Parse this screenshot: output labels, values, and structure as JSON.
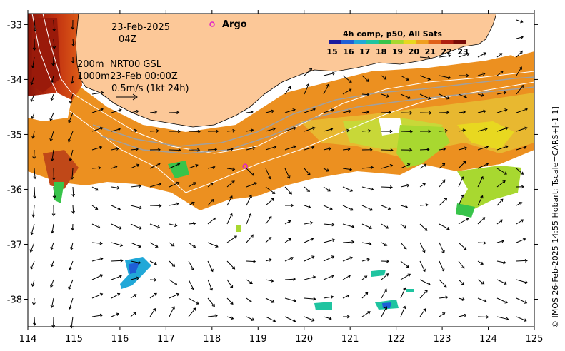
{
  "annotations": {
    "date": "23-Feb-2025",
    "time": "04Z",
    "depth_200": "200m",
    "depth_1000": "1000m",
    "altimetry": "NRT00 GSL",
    "altimetry_time": "23-Feb 00:00Z",
    "arrow_scale": "0.5m/s (1kt 24h)",
    "argo_label": "Argo"
  },
  "colorbar": {
    "title": "4h comp, p50, All Sats",
    "ticks": [
      "15",
      "16",
      "17",
      "18",
      "19",
      "20",
      "21",
      "22",
      "23"
    ],
    "colors": [
      "#1a1a9e",
      "#1f5fd6",
      "#21a8d8",
      "#1fc4a0",
      "#38c44a",
      "#a8d830",
      "#e8d820",
      "#f0a020",
      "#e06018",
      "#b02010",
      "#7a0c08"
    ]
  },
  "axes": {
    "x_ticks": [
      "114",
      "115",
      "116",
      "117",
      "118",
      "119",
      "120",
      "121",
      "122",
      "123",
      "124",
      "125"
    ],
    "y_ticks": [
      "-33",
      "-34",
      "-35",
      "-36",
      "-37",
      "-38"
    ]
  },
  "credit": "© IMOS 26-Feb-2025 14:55 Hobart; Tscale=CARS+[-1 1]",
  "colors": {
    "land": "#fcc898",
    "argo_marker": "#e020c8"
  },
  "argo": {
    "lon": 118.72,
    "lat": -35.58
  }
}
